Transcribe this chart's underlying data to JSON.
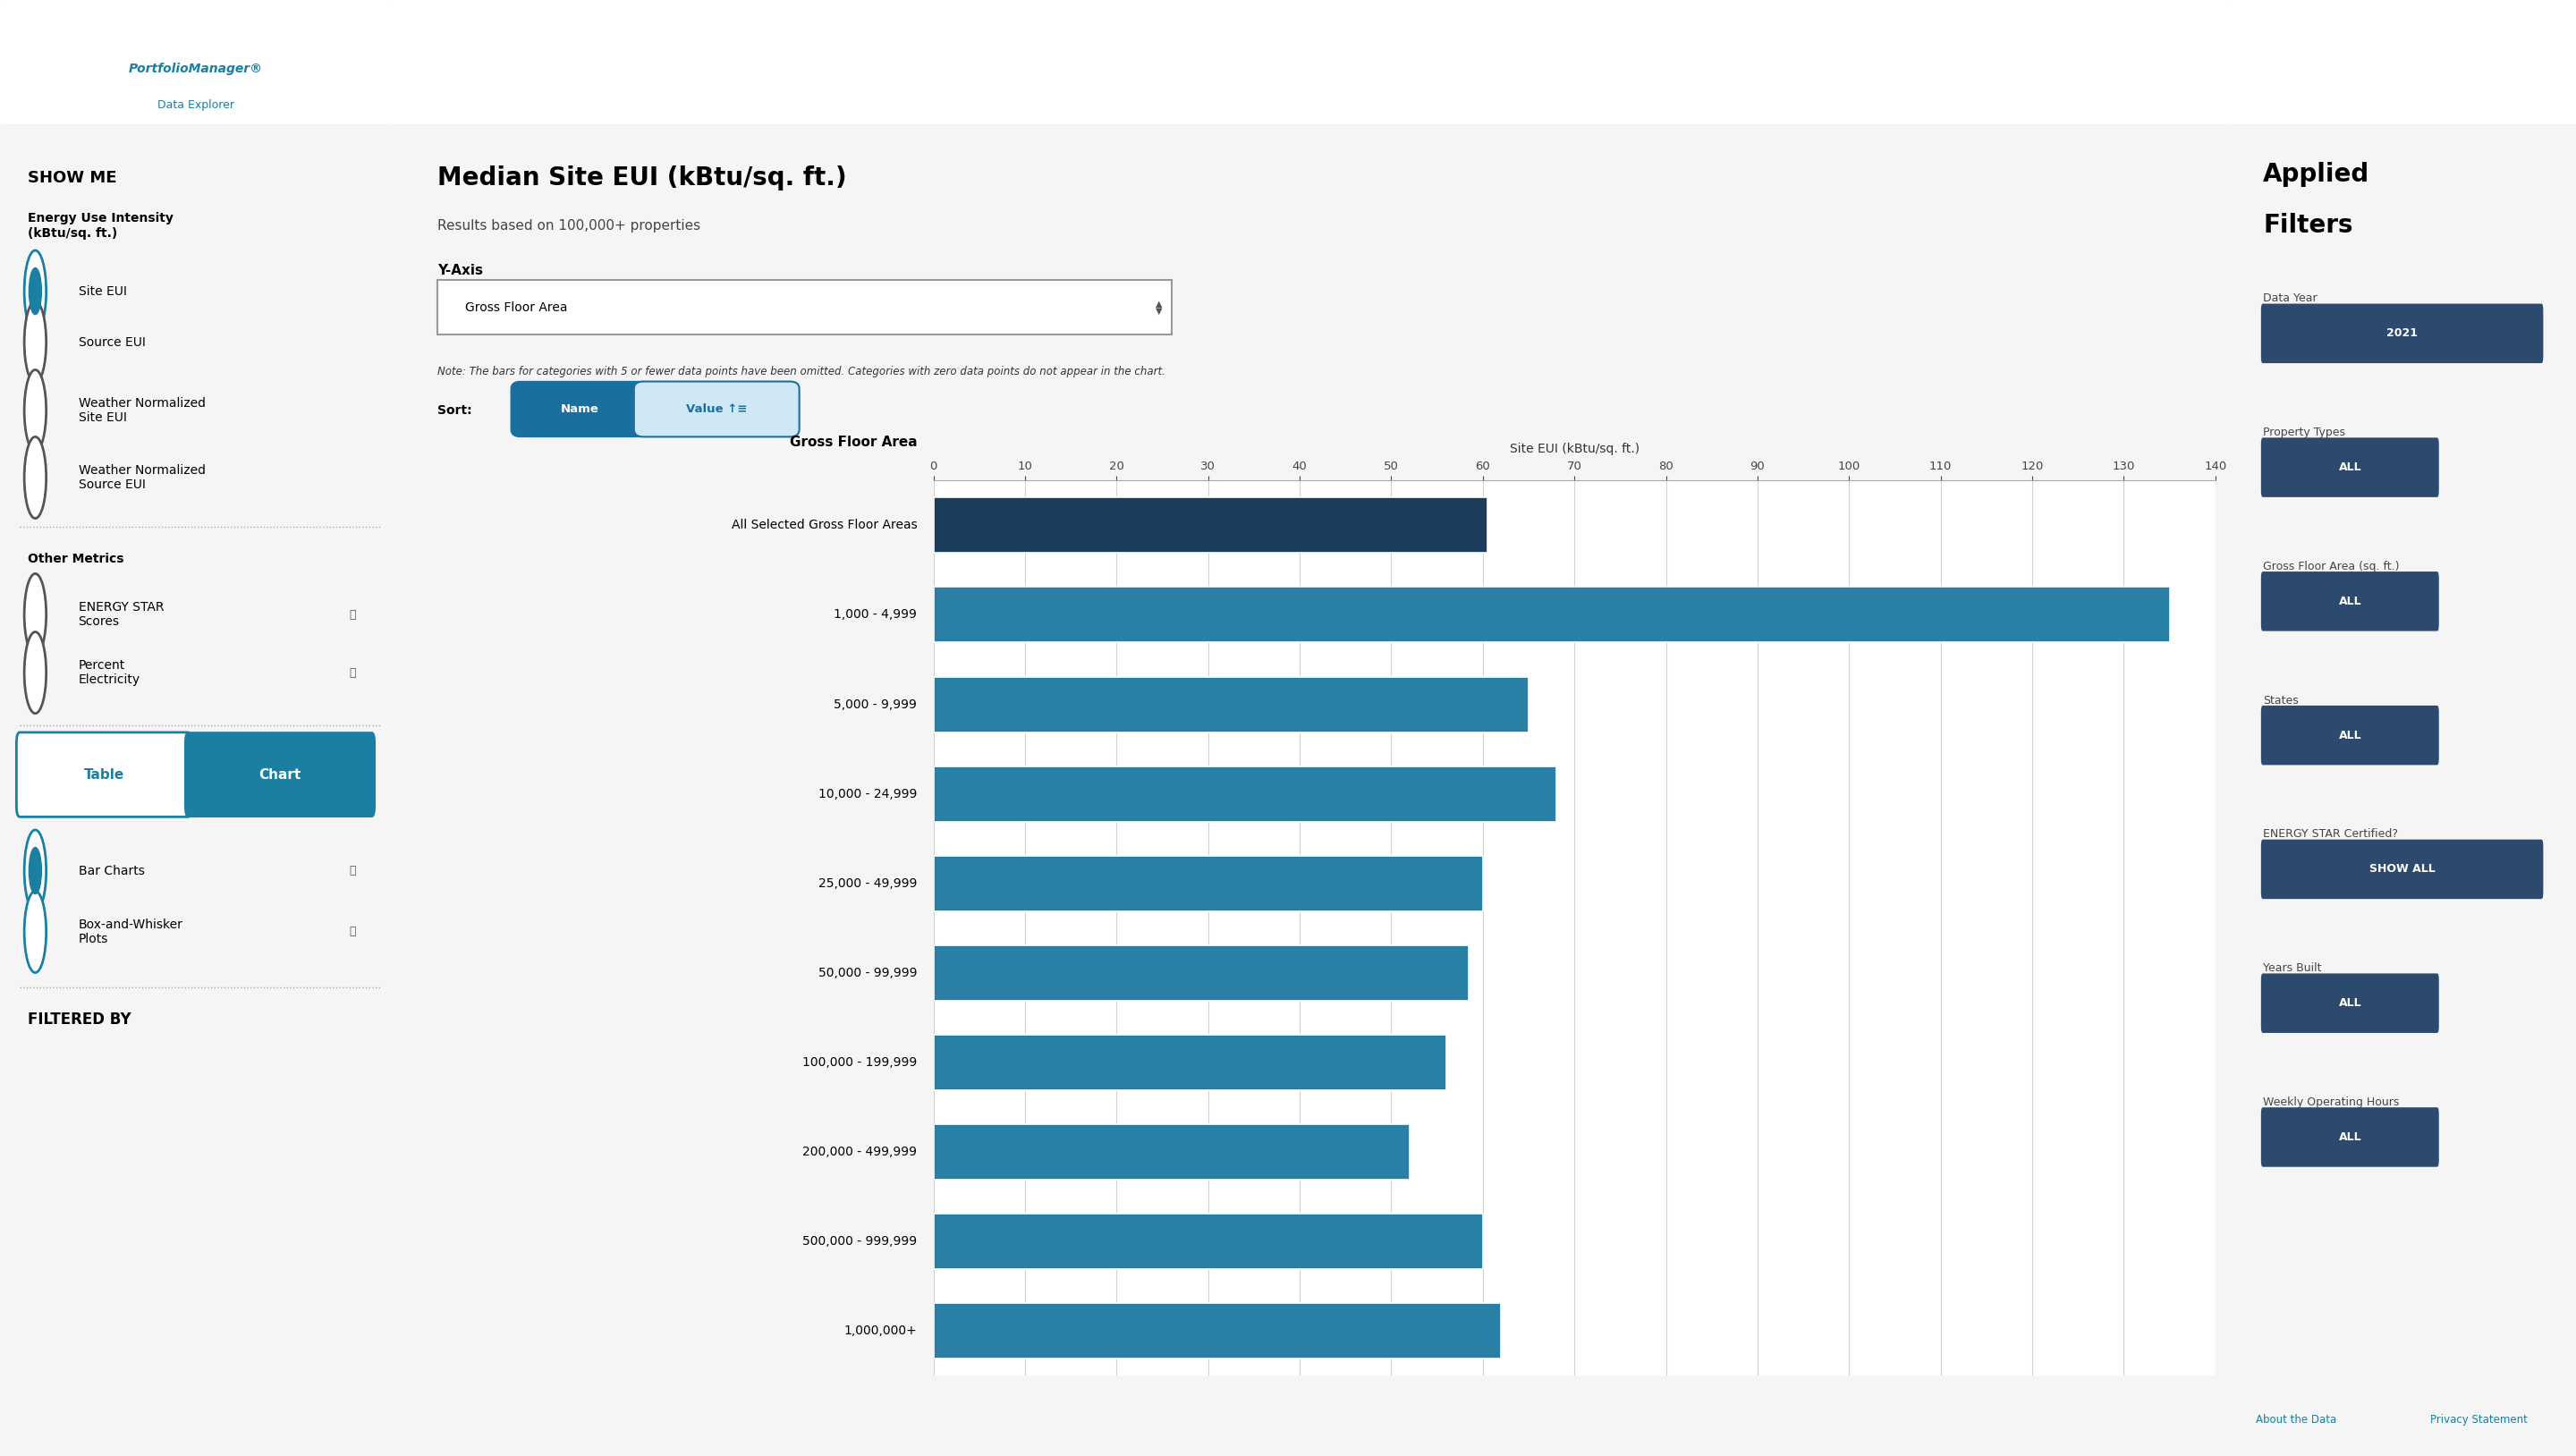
{
  "title": "Median Site EUI (kBtu/sq. ft.)",
  "subtitle": "Results based on 100,000+ properties",
  "yaxis_header_text": "Gross Floor Area",
  "xaxis_label": "Site EUI (kBtu/sq. ft.)",
  "note": "Note: The bars for categories with 5 or fewer data points have been omitted. Categories with zero data points do not appear in the chart.",
  "categories": [
    "All Selected Gross Floor Areas",
    "1,000 - 4,999",
    "5,000 - 9,999",
    "10,000 - 24,999",
    "25,000 - 49,999",
    "50,000 - 99,999",
    "100,000 - 199,999",
    "200,000 - 499,999",
    "500,000 - 999,999",
    "1,000,000+"
  ],
  "values": [
    60.5,
    135.0,
    65.0,
    68.0,
    60.0,
    58.5,
    56.0,
    52.0,
    60.0,
    62.0
  ],
  "bar_color": "#2a7fa5",
  "bar_color_first": "#1a3d5c",
  "xlim": [
    0,
    140
  ],
  "xticks": [
    0,
    10,
    20,
    30,
    40,
    50,
    60,
    70,
    80,
    90,
    100,
    110,
    120,
    130,
    140
  ],
  "grid_color": "#cccccc",
  "bar_height": 0.62,
  "left_sidebar_bg": "#ebebeb",
  "right_sidebar_bg": "#ebebeb",
  "main_bg": "#ffffff",
  "header_bg": "#ffffff",
  "teal_color": "#1a7fa0",
  "dark_blue": "#1a3d5c",
  "filter_tag_bg": "#2c4a6e",
  "name_button_bg": "#1a6fa0",
  "value_button_bg": "#d0e8f5",
  "filter_items": [
    [
      "Data Year",
      "2021"
    ],
    [
      "Property Types",
      "ALL"
    ],
    [
      "Gross Floor Area (sq. ft.)",
      "ALL"
    ],
    [
      "States",
      "ALL"
    ],
    [
      "ENERGY STAR Certified?",
      "SHOW ALL"
    ],
    [
      "Years Built",
      "ALL"
    ],
    [
      "Weekly Operating Hours",
      "ALL"
    ]
  ]
}
